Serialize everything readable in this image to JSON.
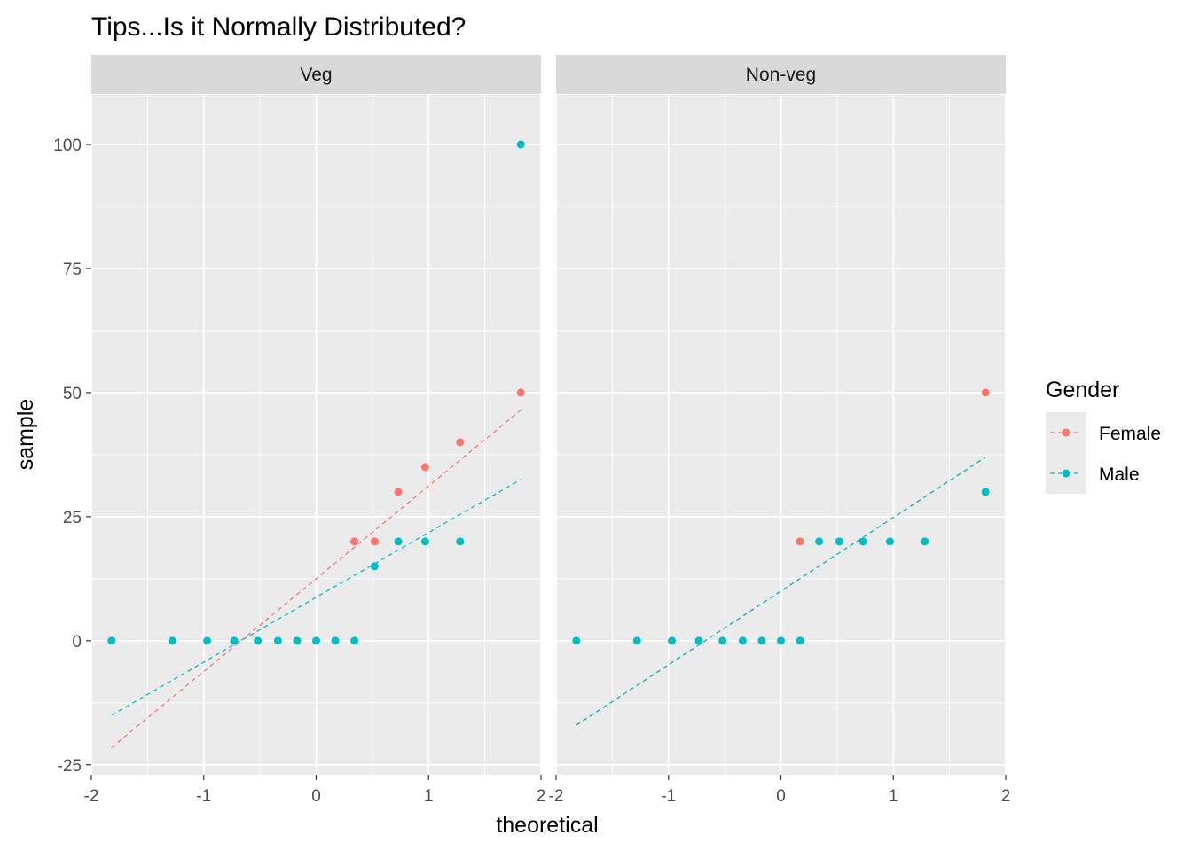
{
  "chart_data": {
    "type": "scatter",
    "title": "Tips...Is it Normally Distributed?",
    "xlabel": "theoretical",
    "ylabel": "sample",
    "xlim": [
      -2,
      2
    ],
    "ylim": [
      -27,
      110
    ],
    "xticks": [
      -2,
      -1,
      0,
      1,
      2
    ],
    "yticks": [
      -25,
      0,
      25,
      50,
      75,
      100
    ],
    "grid": true,
    "legend": {
      "title": "Gender",
      "placement": "right",
      "entries": [
        {
          "name": "Female",
          "color": "#f8766d"
        },
        {
          "name": "Male",
          "color": "#00bfc4"
        }
      ]
    },
    "panels": [
      {
        "label": "Veg",
        "series": [
          {
            "name": "Female",
            "color": "#f8766d",
            "points": [
              [
                0.34,
                20
              ],
              [
                0.52,
                20
              ],
              [
                0.73,
                30
              ],
              [
                0.97,
                35
              ],
              [
                1.28,
                40
              ],
              [
                1.82,
                50
              ]
            ],
            "line": [
              [
                -1.82,
                -21.5
              ],
              [
                1.82,
                46.5
              ]
            ]
          },
          {
            "name": "Male",
            "color": "#00bfc4",
            "points": [
              [
                -1.82,
                0
              ],
              [
                -1.28,
                0
              ],
              [
                -0.97,
                0
              ],
              [
                -0.73,
                0
              ],
              [
                -0.52,
                0
              ],
              [
                -0.34,
                0
              ],
              [
                -0.17,
                0
              ],
              [
                0,
                0
              ],
              [
                0.17,
                0
              ],
              [
                0.34,
                0
              ],
              [
                0.52,
                15
              ],
              [
                0.73,
                20
              ],
              [
                0.97,
                20
              ],
              [
                1.28,
                20
              ],
              [
                1.82,
                100
              ]
            ],
            "line": [
              [
                -1.82,
                -15
              ],
              [
                1.82,
                32.5
              ]
            ]
          }
        ]
      },
      {
        "label": "Non-veg",
        "series": [
          {
            "name": "Female",
            "color": "#f8766d",
            "points": [
              [
                0.17,
                20
              ],
              [
                1.82,
                50
              ]
            ],
            "line": [
              [
                -1.82,
                -17
              ],
              [
                1.82,
                37
              ]
            ]
          },
          {
            "name": "Male",
            "color": "#00bfc4",
            "points": [
              [
                -1.82,
                0
              ],
              [
                -1.28,
                0
              ],
              [
                -0.97,
                0
              ],
              [
                -0.73,
                0
              ],
              [
                -0.52,
                0
              ],
              [
                -0.34,
                0
              ],
              [
                -0.17,
                0
              ],
              [
                0,
                0
              ],
              [
                0.17,
                0
              ],
              [
                0.34,
                20
              ],
              [
                0.52,
                20
              ],
              [
                0.73,
                20
              ],
              [
                0.97,
                20
              ],
              [
                1.28,
                20
              ],
              [
                1.82,
                30
              ]
            ],
            "line": [
              [
                -1.82,
                -17
              ],
              [
                1.82,
                37
              ]
            ]
          }
        ]
      }
    ]
  },
  "colors": {
    "panel_background": "#ebebeb",
    "strip_background": "#d9d9d9",
    "grid_major": "#ffffff",
    "female": "#f8766d",
    "male": "#00bfc4"
  }
}
